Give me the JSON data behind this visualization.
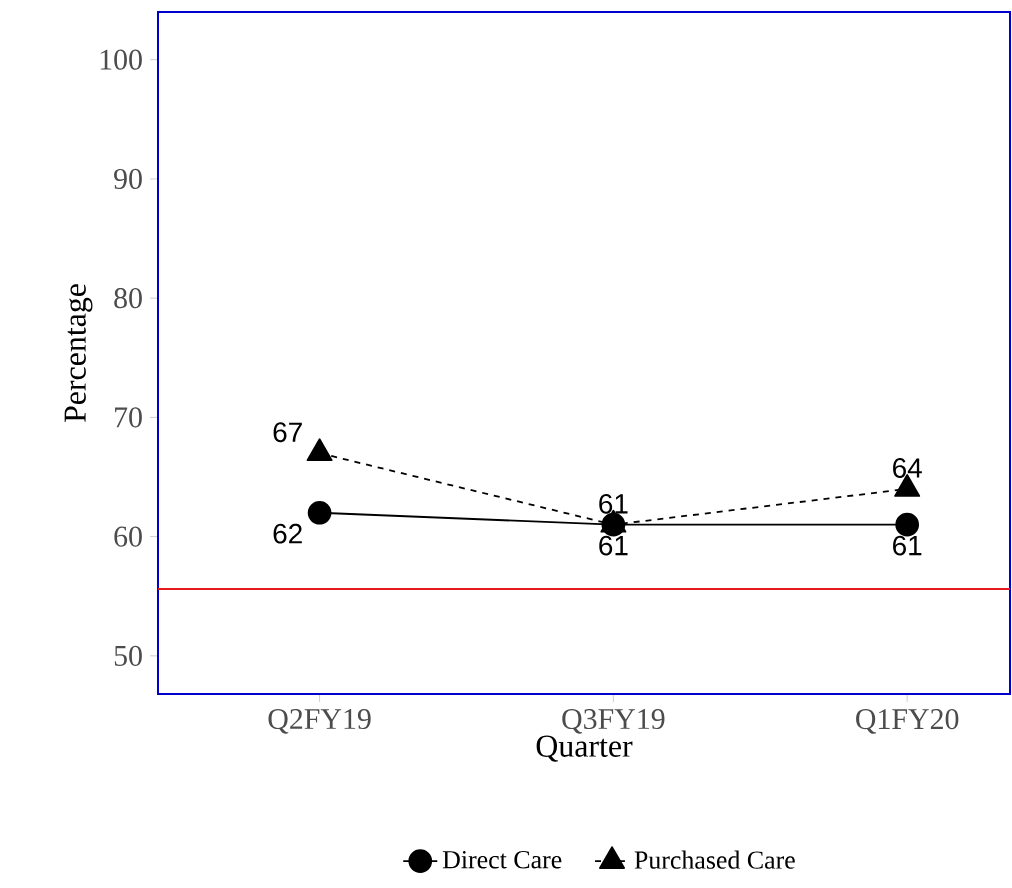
{
  "chart_data": {
    "type": "line",
    "xlabel": "Quarter",
    "ylabel": "Percentage",
    "categories": [
      "Q2FY19",
      "Q3FY19",
      "Q1FY20"
    ],
    "series": [
      {
        "name": "Direct Care",
        "color": "#000000",
        "values": [
          62,
          61,
          61
        ],
        "marker": "circle",
        "line_style": "solid"
      },
      {
        "name": "Purchased Care",
        "color": "#000000",
        "values": [
          67,
          61,
          64
        ],
        "marker": "triangle",
        "line_style": "dashed"
      }
    ],
    "ylim": [
      46.8,
      104
    ],
    "yticks": [
      50,
      60,
      70,
      80,
      90,
      100
    ],
    "ref_lines": [
      {
        "axis": "y",
        "value": 55.6,
        "color": "#e41a1c"
      }
    ],
    "data_labels": true,
    "grid": false,
    "legend": "bottom"
  }
}
